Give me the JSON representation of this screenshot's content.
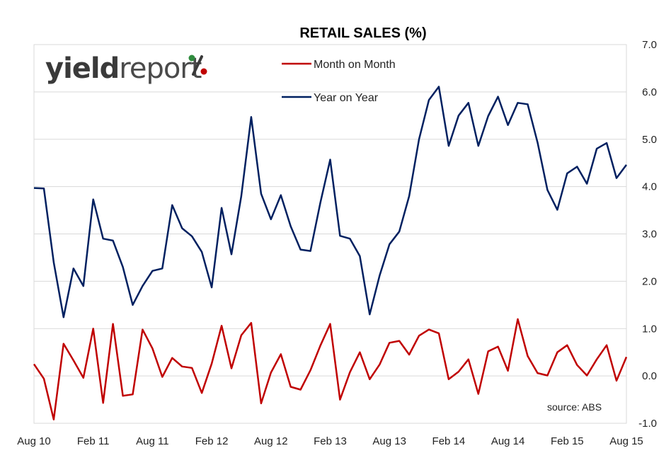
{
  "chart_data": {
    "type": "line",
    "title": "RETAIL SALES (%)",
    "x_tick_labels": [
      "Aug 10",
      "Feb 11",
      "Aug 11",
      "Feb 12",
      "Aug 12",
      "Feb 13",
      "Aug 13",
      "Feb 14",
      "Aug 14",
      "Feb 15",
      "Aug 15"
    ],
    "y_tick_labels": [
      "7.0",
      "6.0",
      "5.0",
      "4.0",
      "3.0",
      "2.0",
      "1.0",
      "0.0",
      "-1.0"
    ],
    "ylim": [
      -1.0,
      7.0
    ],
    "y_axis_side": "right",
    "grid": "horizontal",
    "legend_position": "top-center",
    "source": "source: ABS",
    "logo": {
      "main": "yield",
      "light": "report",
      "mark": "%"
    },
    "series": [
      {
        "name": "Month on Month",
        "color": "#c00000",
        "values": [
          0.25,
          -0.06,
          -0.92,
          0.68,
          0.33,
          -0.04,
          1.0,
          -0.57,
          1.1,
          -0.42,
          -0.39,
          0.98,
          0.58,
          -0.02,
          0.38,
          0.2,
          0.17,
          -0.36,
          0.26,
          1.06,
          0.16,
          0.86,
          1.12,
          -0.58,
          0.07,
          0.46,
          -0.23,
          -0.29,
          0.12,
          0.64,
          1.1,
          -0.5,
          0.08,
          0.5,
          -0.07,
          0.24,
          0.7,
          0.74,
          0.45,
          0.85,
          0.98,
          0.9,
          -0.07,
          0.09,
          0.35,
          -0.38,
          0.52,
          0.62,
          0.11,
          1.2,
          0.42,
          0.06,
          0.01,
          0.5,
          0.65,
          0.23,
          0.01,
          0.35,
          0.65,
          -0.1,
          0.4
        ]
      },
      {
        "name": "Year on Year",
        "color": "#002060",
        "values": [
          3.97,
          3.96,
          2.4,
          1.24,
          2.27,
          1.9,
          3.73,
          2.9,
          2.86,
          2.3,
          1.5,
          1.9,
          2.22,
          2.27,
          3.61,
          3.12,
          2.95,
          2.62,
          1.87,
          3.55,
          2.57,
          3.8,
          5.47,
          3.85,
          3.31,
          3.82,
          3.16,
          2.67,
          2.64,
          3.66,
          4.57,
          2.96,
          2.9,
          2.53,
          1.3,
          2.12,
          2.78,
          3.05,
          3.8,
          5.0,
          5.83,
          6.11,
          4.86,
          5.5,
          5.77,
          4.86,
          5.49,
          5.9,
          5.3,
          5.77,
          5.74,
          4.93,
          3.93,
          3.51,
          4.28,
          4.42,
          4.06,
          4.8,
          4.92,
          4.18,
          4.46
        ]
      }
    ]
  }
}
